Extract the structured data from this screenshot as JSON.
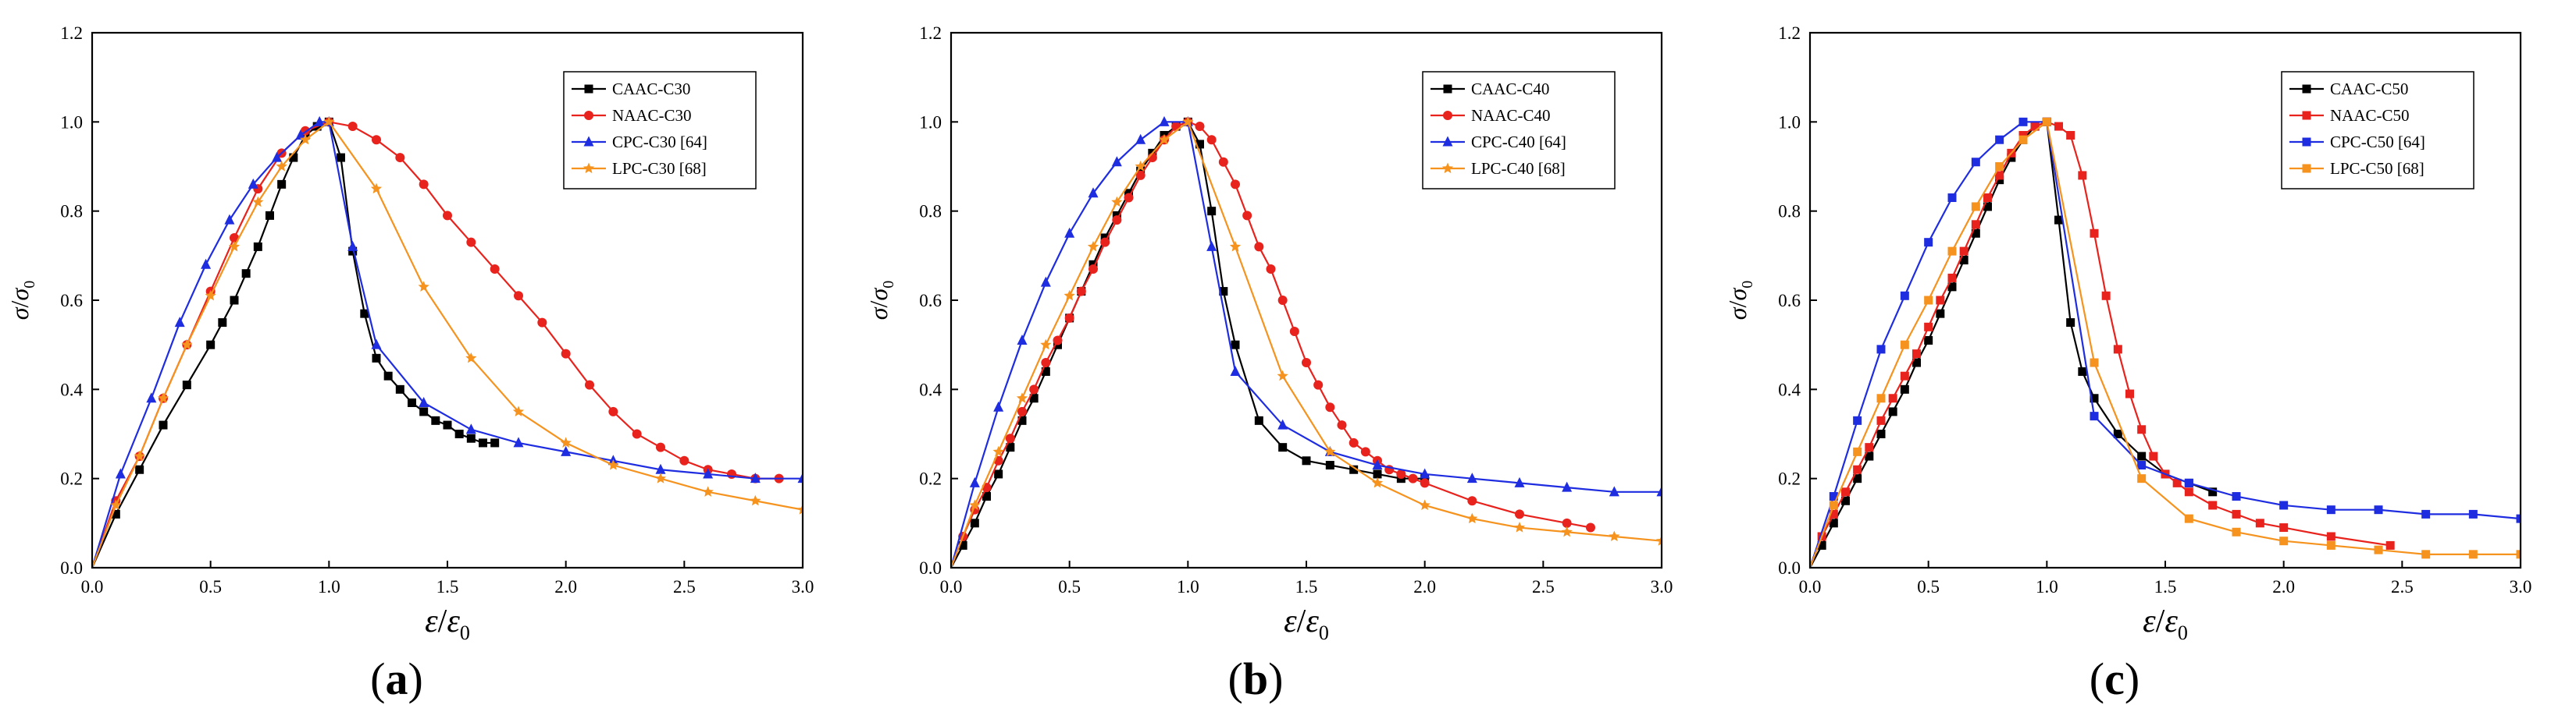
{
  "chart_data": [
    {
      "type": "line",
      "panel_label": "a",
      "xlabel": "ε/ε0",
      "ylabel": "σ/σ0",
      "xlim": [
        0.0,
        3.0
      ],
      "ylim": [
        0.0,
        1.2
      ],
      "xticks": [
        "0.0",
        "0.5",
        "1.0",
        "1.5",
        "2.0",
        "2.5",
        "3.0"
      ],
      "yticks": [
        "0.0",
        "0.2",
        "0.4",
        "0.6",
        "0.8",
        "1.0",
        "1.2"
      ],
      "legend_position": "top-right",
      "series": [
        {
          "name": "CAAC-C30",
          "color": "#000000",
          "marker": "square",
          "x": [
            0,
            0.1,
            0.2,
            0.3,
            0.4,
            0.5,
            0.55,
            0.6,
            0.65,
            0.7,
            0.75,
            0.8,
            0.85,
            0.9,
            0.95,
            1.0,
            1.05,
            1.1,
            1.15,
            1.2,
            1.25,
            1.3,
            1.35,
            1.4,
            1.45,
            1.5,
            1.55,
            1.6,
            1.65,
            1.7
          ],
          "y": [
            0,
            0.12,
            0.22,
            0.32,
            0.41,
            0.5,
            0.55,
            0.6,
            0.66,
            0.72,
            0.79,
            0.86,
            0.92,
            0.97,
            0.99,
            1.0,
            0.92,
            0.71,
            0.57,
            0.47,
            0.43,
            0.4,
            0.37,
            0.35,
            0.33,
            0.32,
            0.3,
            0.29,
            0.28,
            0.28
          ]
        },
        {
          "name": "NAAC-C30",
          "color": "#e8221c",
          "marker": "circle",
          "x": [
            0,
            0.1,
            0.2,
            0.3,
            0.4,
            0.5,
            0.6,
            0.7,
            0.8,
            0.9,
            1.0,
            1.1,
            1.2,
            1.3,
            1.4,
            1.5,
            1.6,
            1.7,
            1.8,
            1.9,
            2.0,
            2.1,
            2.2,
            2.3,
            2.4,
            2.5,
            2.6,
            2.7,
            2.8,
            2.9
          ],
          "y": [
            0,
            0.15,
            0.25,
            0.38,
            0.5,
            0.62,
            0.74,
            0.85,
            0.93,
            0.98,
            1.0,
            0.99,
            0.96,
            0.92,
            0.86,
            0.79,
            0.73,
            0.67,
            0.61,
            0.55,
            0.48,
            0.41,
            0.35,
            0.3,
            0.27,
            0.24,
            0.22,
            0.21,
            0.2,
            0.2
          ]
        },
        {
          "name": "CPC-C30 [64]",
          "color": "#1f2de0",
          "marker": "triangle",
          "x": [
            0,
            0.12,
            0.25,
            0.37,
            0.48,
            0.58,
            0.68,
            0.78,
            0.88,
            0.96,
            1.0,
            1.1,
            1.2,
            1.4,
            1.6,
            1.8,
            2.0,
            2.2,
            2.4,
            2.6,
            2.8,
            3.0
          ],
          "y": [
            0,
            0.21,
            0.38,
            0.55,
            0.68,
            0.78,
            0.86,
            0.92,
            0.97,
            1.0,
            1.0,
            0.72,
            0.5,
            0.37,
            0.31,
            0.28,
            0.26,
            0.24,
            0.22,
            0.21,
            0.2,
            0.2
          ]
        },
        {
          "name": "LPC-C30 [68]",
          "color": "#f5931e",
          "marker": "star",
          "x": [
            0,
            0.1,
            0.2,
            0.3,
            0.4,
            0.5,
            0.6,
            0.7,
            0.8,
            0.9,
            1.0,
            1.2,
            1.4,
            1.6,
            1.8,
            2.0,
            2.2,
            2.4,
            2.6,
            2.8,
            3.0
          ],
          "y": [
            0,
            0.14,
            0.25,
            0.38,
            0.5,
            0.61,
            0.72,
            0.82,
            0.9,
            0.96,
            1.0,
            0.85,
            0.63,
            0.47,
            0.35,
            0.28,
            0.23,
            0.2,
            0.17,
            0.15,
            0.13
          ]
        }
      ]
    },
    {
      "type": "line",
      "panel_label": "b",
      "xlabel": "ε/ε0",
      "ylabel": "σ/σ0",
      "xlim": [
        0.0,
        3.0
      ],
      "ylim": [
        0.0,
        1.2
      ],
      "xticks": [
        "0.0",
        "0.5",
        "1.0",
        "1.5",
        "2.0",
        "2.5",
        "3.0"
      ],
      "yticks": [
        "0.0",
        "0.2",
        "0.4",
        "0.6",
        "0.8",
        "1.0",
        "1.2"
      ],
      "legend_position": "top-right",
      "series": [
        {
          "name": "CAAC-C40",
          "color": "#000000",
          "marker": "square",
          "x": [
            0,
            0.05,
            0.1,
            0.15,
            0.2,
            0.25,
            0.3,
            0.35,
            0.4,
            0.45,
            0.5,
            0.55,
            0.6,
            0.65,
            0.7,
            0.75,
            0.8,
            0.85,
            0.9,
            0.95,
            1.0,
            1.05,
            1.1,
            1.15,
            1.2,
            1.3,
            1.4,
            1.5,
            1.6,
            1.7,
            1.8,
            1.9,
            2.0
          ],
          "y": [
            0,
            0.05,
            0.1,
            0.16,
            0.21,
            0.27,
            0.33,
            0.38,
            0.44,
            0.5,
            0.56,
            0.62,
            0.68,
            0.74,
            0.79,
            0.84,
            0.89,
            0.93,
            0.97,
            0.99,
            1.0,
            0.95,
            0.8,
            0.62,
            0.5,
            0.33,
            0.27,
            0.24,
            0.23,
            0.22,
            0.21,
            0.2,
            0.2
          ]
        },
        {
          "name": "NAAC-C40",
          "color": "#e8221c",
          "marker": "circle",
          "x": [
            0,
            0.05,
            0.1,
            0.15,
            0.2,
            0.25,
            0.3,
            0.35,
            0.4,
            0.45,
            0.5,
            0.55,
            0.6,
            0.65,
            0.7,
            0.75,
            0.8,
            0.85,
            0.9,
            0.95,
            1.0,
            1.05,
            1.1,
            1.15,
            1.2,
            1.25,
            1.3,
            1.35,
            1.4,
            1.45,
            1.5,
            1.55,
            1.6,
            1.65,
            1.7,
            1.75,
            1.8,
            1.85,
            1.9,
            1.95,
            2.0,
            2.2,
            2.4,
            2.6,
            2.7
          ],
          "y": [
            0,
            0.07,
            0.13,
            0.18,
            0.24,
            0.29,
            0.35,
            0.4,
            0.46,
            0.51,
            0.56,
            0.62,
            0.67,
            0.73,
            0.78,
            0.83,
            0.88,
            0.92,
            0.96,
            0.99,
            1.0,
            0.99,
            0.96,
            0.91,
            0.86,
            0.79,
            0.72,
            0.67,
            0.6,
            0.53,
            0.46,
            0.41,
            0.36,
            0.32,
            0.28,
            0.26,
            0.24,
            0.22,
            0.21,
            0.2,
            0.19,
            0.15,
            0.12,
            0.1,
            0.09
          ]
        },
        {
          "name": "CPC-C40 [64]",
          "color": "#1f2de0",
          "marker": "triangle",
          "x": [
            0,
            0.1,
            0.2,
            0.3,
            0.4,
            0.5,
            0.6,
            0.7,
            0.8,
            0.9,
            1.0,
            1.1,
            1.2,
            1.4,
            1.6,
            1.8,
            2.0,
            2.2,
            2.4,
            2.6,
            2.8,
            3.0
          ],
          "y": [
            0,
            0.19,
            0.36,
            0.51,
            0.64,
            0.75,
            0.84,
            0.91,
            0.96,
            1.0,
            1.0,
            0.72,
            0.44,
            0.32,
            0.26,
            0.23,
            0.21,
            0.2,
            0.19,
            0.18,
            0.17,
            0.17
          ]
        },
        {
          "name": "LPC-C40 [68]",
          "color": "#f5931e",
          "marker": "star",
          "x": [
            0,
            0.1,
            0.2,
            0.3,
            0.4,
            0.5,
            0.6,
            0.7,
            0.8,
            0.9,
            1.0,
            1.2,
            1.4,
            1.6,
            1.8,
            2.0,
            2.2,
            2.4,
            2.6,
            2.8,
            3.0
          ],
          "y": [
            0,
            0.14,
            0.26,
            0.38,
            0.5,
            0.61,
            0.72,
            0.82,
            0.9,
            0.96,
            1.0,
            0.72,
            0.43,
            0.26,
            0.19,
            0.14,
            0.11,
            0.09,
            0.08,
            0.07,
            0.06
          ]
        }
      ]
    },
    {
      "type": "line",
      "panel_label": "c",
      "xlabel": "ε/ε0",
      "ylabel": "σ/σ0",
      "xlim": [
        0.0,
        3.0
      ],
      "ylim": [
        0.0,
        1.2
      ],
      "xticks": [
        "0.0",
        "0.5",
        "1.0",
        "1.5",
        "2.0",
        "2.5",
        "3.0"
      ],
      "yticks": [
        "0.0",
        "0.2",
        "0.4",
        "0.6",
        "0.8",
        "1.0",
        "1.2"
      ],
      "legend_position": "top-right",
      "series": [
        {
          "name": "CAAC-C50",
          "color": "#000000",
          "marker": "square",
          "x": [
            0,
            0.05,
            0.1,
            0.15,
            0.2,
            0.25,
            0.3,
            0.35,
            0.4,
            0.45,
            0.5,
            0.55,
            0.6,
            0.65,
            0.7,
            0.75,
            0.8,
            0.85,
            0.9,
            0.95,
            1.0,
            1.05,
            1.1,
            1.15,
            1.2,
            1.3,
            1.4,
            1.5,
            1.6,
            1.7
          ],
          "y": [
            0,
            0.05,
            0.1,
            0.15,
            0.2,
            0.25,
            0.3,
            0.35,
            0.4,
            0.46,
            0.51,
            0.57,
            0.63,
            0.69,
            0.75,
            0.81,
            0.87,
            0.92,
            0.96,
            0.99,
            1.0,
            0.78,
            0.55,
            0.44,
            0.38,
            0.3,
            0.25,
            0.21,
            0.19,
            0.17
          ]
        },
        {
          "name": "NAAC-C50",
          "color": "#e8221c",
          "marker": "square",
          "x": [
            0,
            0.05,
            0.1,
            0.15,
            0.2,
            0.25,
            0.3,
            0.35,
            0.4,
            0.45,
            0.5,
            0.55,
            0.6,
            0.65,
            0.7,
            0.75,
            0.8,
            0.85,
            0.9,
            0.95,
            1.0,
            1.05,
            1.1,
            1.15,
            1.2,
            1.25,
            1.3,
            1.35,
            1.4,
            1.45,
            1.5,
            1.55,
            1.6,
            1.7,
            1.8,
            1.9,
            2.0,
            2.2,
            2.45
          ],
          "y": [
            0,
            0.07,
            0.12,
            0.17,
            0.22,
            0.27,
            0.33,
            0.38,
            0.43,
            0.48,
            0.54,
            0.6,
            0.65,
            0.71,
            0.77,
            0.83,
            0.88,
            0.93,
            0.97,
            0.99,
            1.0,
            0.99,
            0.97,
            0.88,
            0.75,
            0.61,
            0.49,
            0.39,
            0.31,
            0.25,
            0.21,
            0.19,
            0.17,
            0.14,
            0.12,
            0.1,
            0.09,
            0.07,
            0.05
          ]
        },
        {
          "name": "CPC-C50 [64]",
          "color": "#1f2de0",
          "marker": "square",
          "x": [
            0,
            0.1,
            0.2,
            0.3,
            0.4,
            0.5,
            0.6,
            0.7,
            0.8,
            0.9,
            1.0,
            1.2,
            1.4,
            1.6,
            1.8,
            2.0,
            2.2,
            2.4,
            2.6,
            2.8,
            3.0
          ],
          "y": [
            0,
            0.16,
            0.33,
            0.49,
            0.61,
            0.73,
            0.83,
            0.91,
            0.96,
            1.0,
            1.0,
            0.34,
            0.23,
            0.19,
            0.16,
            0.14,
            0.13,
            0.13,
            0.12,
            0.12,
            0.11
          ]
        },
        {
          "name": "LPC-C50 [68]",
          "color": "#f5931e",
          "marker": "square",
          "x": [
            0,
            0.1,
            0.2,
            0.3,
            0.4,
            0.5,
            0.6,
            0.7,
            0.8,
            0.9,
            1.0,
            1.2,
            1.4,
            1.6,
            1.8,
            2.0,
            2.2,
            2.4,
            2.6,
            2.8,
            3.0
          ],
          "y": [
            0,
            0.14,
            0.26,
            0.38,
            0.5,
            0.6,
            0.71,
            0.81,
            0.9,
            0.96,
            1.0,
            0.46,
            0.2,
            0.11,
            0.08,
            0.06,
            0.05,
            0.04,
            0.03,
            0.03,
            0.03
          ]
        }
      ]
    }
  ]
}
